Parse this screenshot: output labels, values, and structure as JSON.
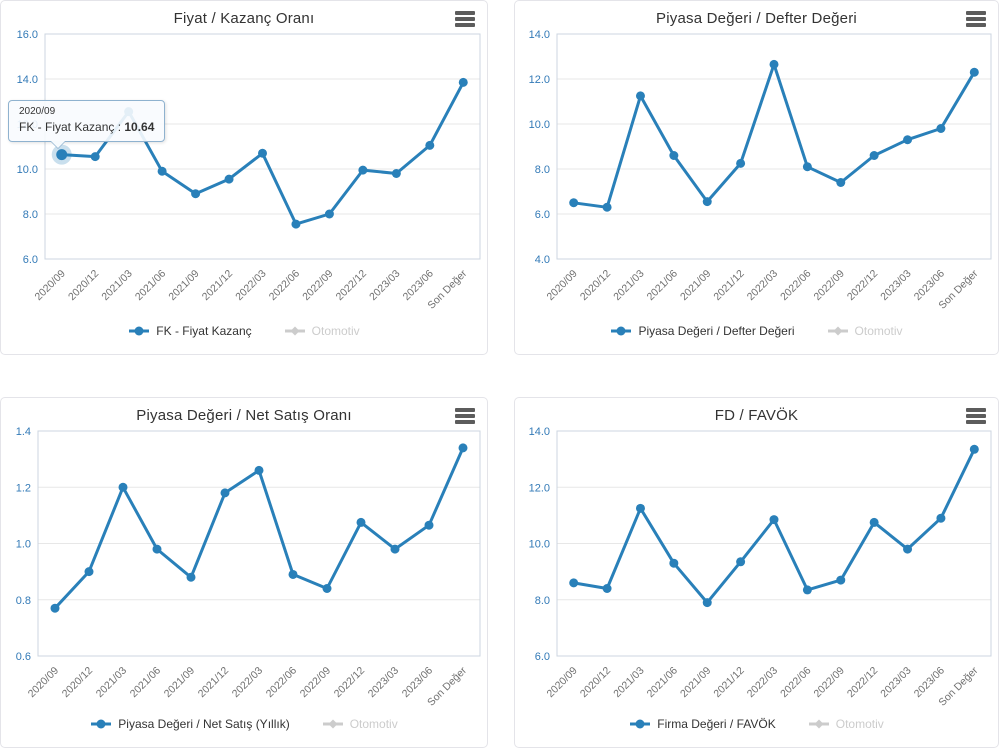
{
  "colors": {
    "series_blue": "#2980b9",
    "disabled_gray": "#cccccc",
    "y_label_blue": "#337ab7",
    "x_label_gray": "#707070",
    "title_gray": "#333333",
    "grid_line": "#e7e7e7",
    "plot_border": "#ccd6e0",
    "panel_border": "#e4e4e9",
    "tooltip_border": "#8fb2cf",
    "menu_icon_gray": "#5c5c5c"
  },
  "chart_data": [
    {
      "type": "line",
      "title": "Fiyat / Kazanç Oranı",
      "categories": [
        "2020/09",
        "2020/12",
        "2021/03",
        "2021/06",
        "2021/09",
        "2021/12",
        "2022/03",
        "2022/06",
        "2022/09",
        "2022/12",
        "2023/03",
        "2023/06",
        "Son Değer"
      ],
      "series": [
        {
          "name": "FK - Fiyat Kazanç",
          "color": "#2980b9",
          "visible": true,
          "values": [
            10.64,
            10.55,
            12.55,
            9.9,
            8.9,
            9.55,
            10.7,
            7.55,
            8.0,
            9.95,
            9.8,
            11.05,
            13.85
          ]
        },
        {
          "name": "Otomotiv",
          "color": "#cccccc",
          "visible": false,
          "values": []
        }
      ],
      "ylim": [
        6,
        16
      ],
      "ytick_step": 2,
      "ytick_labels": [
        "16.0",
        "14.0",
        "12.0",
        "10.0",
        "8.0",
        "6.0"
      ],
      "grid": true,
      "legend_position": "bottom",
      "tooltip": {
        "header": "2020/09",
        "label": "FK - Fiyat Kazanç : ",
        "value": "10.64",
        "point_index": 0
      }
    },
    {
      "type": "line",
      "title": "Piyasa Değeri / Defter Değeri",
      "categories": [
        "2020/09",
        "2020/12",
        "2021/03",
        "2021/06",
        "2021/09",
        "2021/12",
        "2022/03",
        "2022/06",
        "2022/09",
        "2022/12",
        "2023/03",
        "2023/06",
        "Son Değer"
      ],
      "series": [
        {
          "name": "Piyasa Değeri / Defter Değeri",
          "color": "#2980b9",
          "visible": true,
          "values": [
            6.5,
            6.3,
            11.25,
            8.6,
            6.55,
            8.25,
            12.65,
            8.1,
            7.4,
            8.6,
            9.3,
            9.8,
            12.3
          ]
        },
        {
          "name": "Otomotiv",
          "color": "#cccccc",
          "visible": false,
          "values": []
        }
      ],
      "ylim": [
        4,
        14
      ],
      "ytick_step": 2,
      "ytick_labels": [
        "14.0",
        "12.0",
        "10.0",
        "8.0",
        "6.0",
        "4.0"
      ],
      "grid": true,
      "legend_position": "bottom"
    },
    {
      "type": "line",
      "title": "Piyasa Değeri / Net Satış Oranı",
      "categories": [
        "2020/09",
        "2020/12",
        "2021/03",
        "2021/06",
        "2021/09",
        "2021/12",
        "2022/03",
        "2022/06",
        "2022/09",
        "2022/12",
        "2023/03",
        "2023/06",
        "Son Değer"
      ],
      "series": [
        {
          "name": "Piyasa Değeri / Net Satış (Yıllık)",
          "color": "#2980b9",
          "visible": true,
          "values": [
            0.77,
            0.9,
            1.2,
            0.98,
            0.88,
            1.18,
            1.26,
            0.89,
            0.84,
            1.075,
            0.98,
            1.065,
            1.34
          ]
        },
        {
          "name": "Otomotiv",
          "color": "#cccccc",
          "visible": false,
          "values": []
        }
      ],
      "ylim": [
        0.6,
        1.4
      ],
      "ytick_step": 0.2,
      "ytick_labels": [
        "1.4",
        "1.2",
        "1.0",
        "0.8",
        "0.6"
      ],
      "grid": true,
      "legend_position": "bottom"
    },
    {
      "type": "line",
      "title": "FD / FAVÖK",
      "categories": [
        "2020/09",
        "2020/12",
        "2021/03",
        "2021/06",
        "2021/09",
        "2021/12",
        "2022/03",
        "2022/06",
        "2022/09",
        "2022/12",
        "2023/03",
        "2023/06",
        "Son Değer"
      ],
      "series": [
        {
          "name": "Firma Değeri / FAVÖK",
          "color": "#2980b9",
          "visible": true,
          "values": [
            8.6,
            8.4,
            11.25,
            9.3,
            7.9,
            9.35,
            10.85,
            8.35,
            8.7,
            10.75,
            9.8,
            10.9,
            13.35
          ]
        },
        {
          "name": "Otomotiv",
          "color": "#cccccc",
          "visible": false,
          "values": []
        }
      ],
      "ylim": [
        6,
        14
      ],
      "ytick_step": 2,
      "ytick_labels": [
        "14.0",
        "12.0",
        "10.0",
        "8.0",
        "6.0"
      ],
      "grid": true,
      "legend_position": "bottom"
    }
  ]
}
